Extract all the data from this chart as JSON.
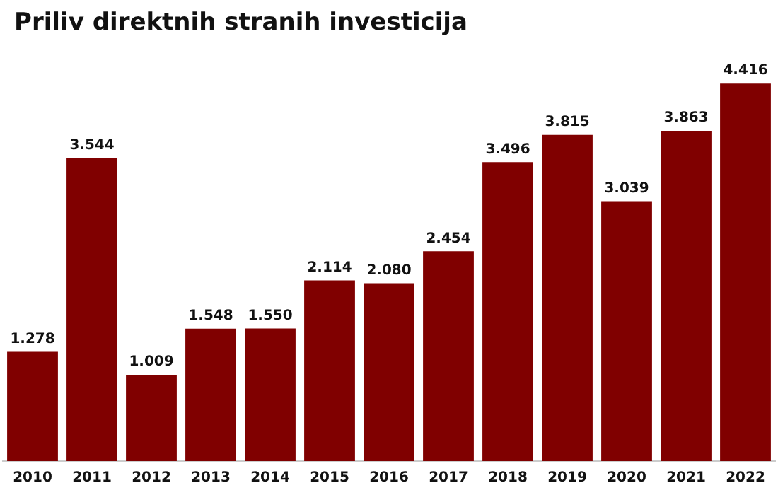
{
  "chart_data": {
    "type": "bar",
    "title": "Priliv direktnih stranih investicija",
    "categories": [
      "2010",
      "2011",
      "2012",
      "2013",
      "2014",
      "2015",
      "2016",
      "2017",
      "2018",
      "2019",
      "2020",
      "2021",
      "2022"
    ],
    "values": [
      1278,
      3544,
      1009,
      1548,
      1550,
      2114,
      2080,
      2454,
      3496,
      3815,
      3039,
      3863,
      4416
    ],
    "value_labels": [
      "1.278",
      "3.544",
      "1.009",
      "1.548",
      "1.550",
      "2.114",
      "2.080",
      "2.454",
      "3.496",
      "3.815",
      "3.039",
      "3.863",
      "4.416"
    ],
    "color": "#800000",
    "grid": false,
    "legend": false
  }
}
